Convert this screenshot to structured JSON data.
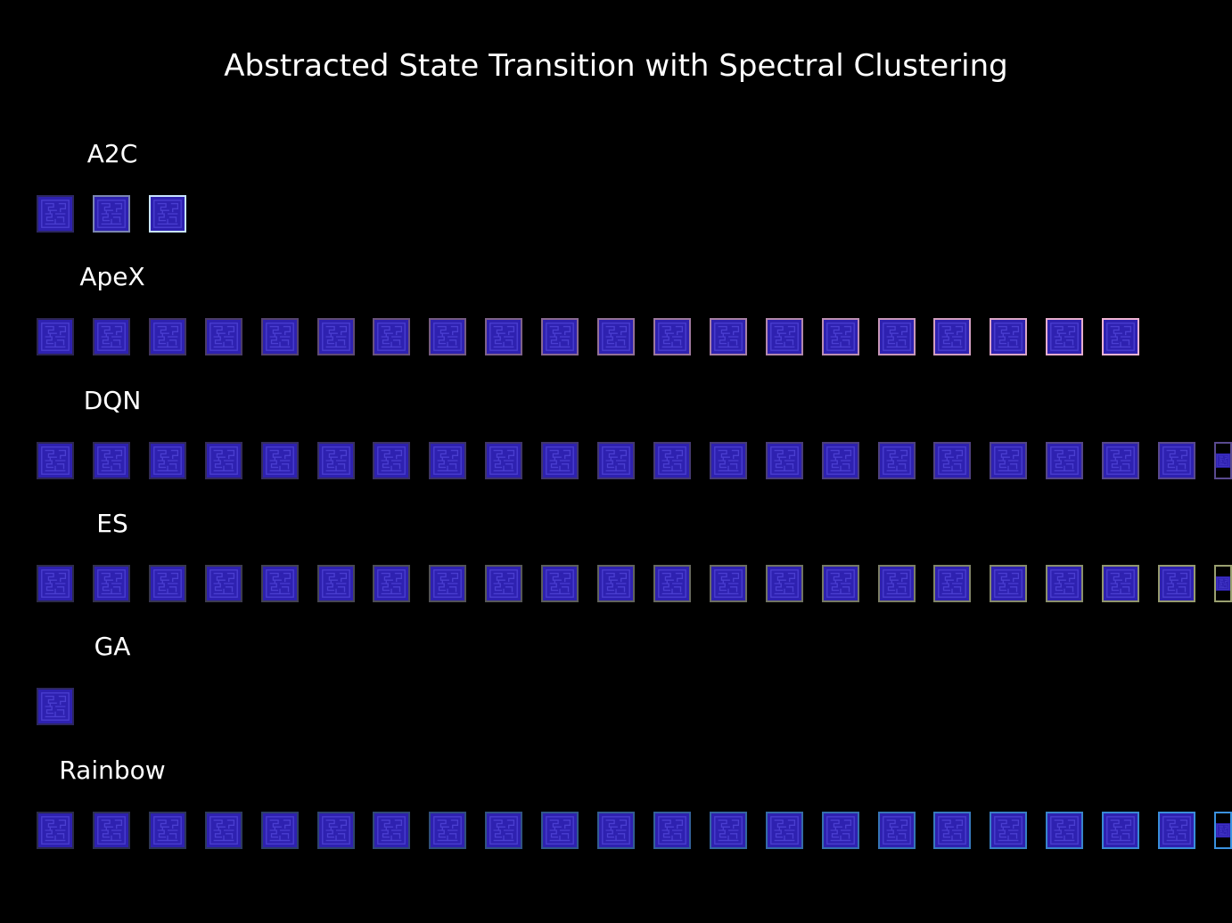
{
  "title": "Abstracted State Transition with Spectral Clustering",
  "rows": [
    {
      "label": "A2C",
      "frames": 3,
      "start_color": "#2b2660",
      "end_color": "#c8e4ff"
    },
    {
      "label": "ApeX",
      "frames": 20,
      "start_color": "#2b2452",
      "end_color": "#f0b4d4"
    },
    {
      "label": "DQN",
      "frames": 22,
      "start_color": "#2c2650",
      "end_color": "#5a4a90"
    },
    {
      "label": "ES",
      "frames": 22,
      "start_color": "#2c2a4a",
      "end_color": "#9aa070"
    },
    {
      "label": "GA",
      "frames": 1,
      "start_color": "#2c2660",
      "end_color": "#2c2660"
    },
    {
      "label": "Rainbow",
      "frames": 22,
      "start_color": "#2a2a48",
      "end_color": "#3a92e0"
    }
  ],
  "frame_fill": "#2e21b0",
  "maze_color": "#4a3ed0"
}
